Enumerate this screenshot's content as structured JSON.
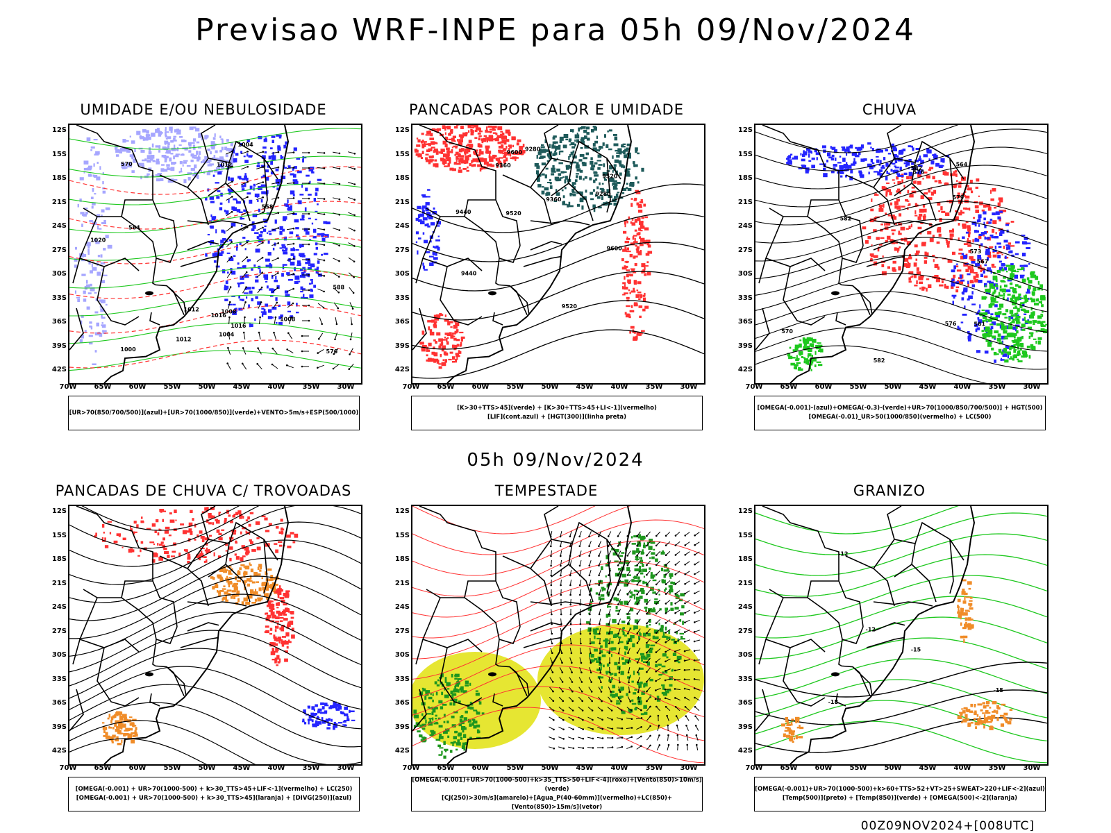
{
  "title": "Previsao WRF-INPE  para 05h 09/Nov/2024",
  "mid_time": "05h 09/Nov/2024",
  "footer": "00Z09NOV2024+[008UTC]",
  "axes": {
    "lat_labels": [
      "12S",
      "15S",
      "18S",
      "21S",
      "24S",
      "27S",
      "30S",
      "33S",
      "36S",
      "39S",
      "42S"
    ],
    "lon_labels": [
      "70W",
      "65W",
      "60W",
      "55W",
      "50W",
      "45W",
      "40W",
      "35W",
      "30W"
    ]
  },
  "colors": {
    "blue": "#2424ff",
    "light_blue": "#a6a6ff",
    "green": "#1ec81e",
    "red": "#ff3232",
    "dark_teal": "#1e5a5a",
    "orange": "#f08c28",
    "yellow": "#e6e632",
    "dark_green": "#1e961e"
  },
  "panels": [
    {
      "title": "UMIDADE E/OU NEBULOSIDADE",
      "legend": [
        "[UR>70(850/700/500)](azul)+[UR>70(1000/850)](verde)+VENTO>5m/s+ESP(500/1000)"
      ],
      "contour_labels": [
        "1012",
        "1012",
        "1016",
        "1020",
        "1012",
        "1008",
        "1004",
        "1000",
        "1004",
        "1008",
        "1016",
        "564",
        "570",
        "576",
        "588",
        "558"
      ]
    },
    {
      "title": "PANCADAS POR CALOR E UMIDADE",
      "legend": [
        "[K>30+TTS>45](verde) + [K>30+TTS>45+LI<-1](vermelho)",
        "[LIF](cont.azul) + [HGT(300)](linha preta)"
      ],
      "contour_labels": [
        "9600",
        "9600",
        "9520",
        "9520",
        "9440",
        "9360",
        "9280",
        "9520",
        "9440",
        "9360",
        "9280"
      ]
    },
    {
      "title": "CHUVA",
      "legend": [
        "[OMEGA(-0.001)-(azul)+OMEGA(-0.3)-(verde)+UR>70(1000/850/700/500)] + HGT(500)",
        "[OMEGA(-0.01)_UR>50(1000/850)(vermelho) + LC(500)"
      ],
      "contour_labels": [
        "582",
        "582",
        "576",
        "573",
        "570",
        "567",
        "564",
        "561",
        "579",
        "576",
        "582"
      ]
    },
    {
      "title": "PANCADAS DE CHUVA C/ TROVOADAS",
      "legend": [
        "[OMEGA(-0.001) + UR>70(1000-500) + k>30_TTS>45+LIF<-1](vermelho) + LC(250)",
        "[OMEGA(-0.001) + UR>70(1000-500) + k>30_TTS>45](laranja) + [DIVG(250)](azul)"
      ],
      "contour_labels": []
    },
    {
      "title": "TEMPESTADE",
      "legend": [
        "[OMEGA(-0.001)+UR>70(1000-500)+k>35_TTS>50+LIF<-4](roxo)+[Vento(850)>10m/s](verde)",
        "[CJ(250)>30m/s](amarelo)+[Agua_P(40-60mm)](vermelho)+LC(850)+[Vento(850)>15m/s](vetor)"
      ],
      "contour_labels": []
    },
    {
      "title": "GRANIZO",
      "legend": [
        "[OMEGA(-0.001)+UR>70(1000-500)+k>60+TTS>52+VT>25+SWEAT>220+LIF<-2](azul)",
        "[Temp(500)](preto) + [Temp(850)](verde) + [OMEGA(500)<-2](laranja)"
      ],
      "contour_labels": [
        "-12",
        "-15",
        "-15",
        "-18",
        "-12"
      ]
    }
  ]
}
